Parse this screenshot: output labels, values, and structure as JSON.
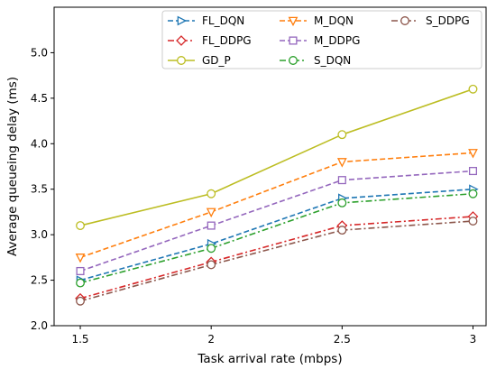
{
  "chart_data": {
    "type": "line",
    "title": "",
    "xlabel": "Task arrival rate (mbps)",
    "ylabel": "Average queueing delay (ms)",
    "x": [
      1.5,
      2,
      2.5,
      3
    ],
    "xtick_labels": [
      "1.5",
      "2",
      "2.5",
      "3"
    ],
    "ylim": [
      2.0,
      5.5
    ],
    "yticks": [
      2.0,
      2.5,
      3.0,
      3.5,
      4.0,
      4.5,
      5.0
    ],
    "ytick_labels": [
      "2.0",
      "2.5",
      "3.0",
      "3.5",
      "4.0",
      "4.5",
      "5.0"
    ],
    "grid": false,
    "legend_position": "top-right",
    "series": [
      {
        "name": "FL_DQN",
        "values": [
          2.5,
          2.9,
          3.4,
          3.5
        ],
        "color": "#1f77b4",
        "dash": "dashed",
        "marker": "triangle-right"
      },
      {
        "name": "FL_DDPG",
        "values": [
          2.3,
          2.7,
          3.1,
          3.2
        ],
        "color": "#d62728",
        "dash": "dashdot",
        "marker": "diamond"
      },
      {
        "name": "GD_P",
        "values": [
          3.1,
          3.45,
          4.1,
          4.6
        ],
        "color": "#bcbd22",
        "dash": "solid",
        "marker": "circle"
      },
      {
        "name": "M_DQN",
        "values": [
          2.75,
          3.25,
          3.8,
          3.9
        ],
        "color": "#ff7f0e",
        "dash": "dashed",
        "marker": "triangle-down"
      },
      {
        "name": "M_DDPG",
        "values": [
          2.6,
          3.1,
          3.6,
          3.7
        ],
        "color": "#9467bd",
        "dash": "dashed",
        "marker": "square"
      },
      {
        "name": "S_DQN",
        "values": [
          2.47,
          2.85,
          3.35,
          3.45
        ],
        "color": "#2ca02c",
        "dash": "dashdot",
        "marker": "circle"
      },
      {
        "name": "S_DDPG",
        "values": [
          2.27,
          2.67,
          3.05,
          3.15
        ],
        "color": "#8c564b",
        "dash": "dashdot",
        "marker": "circle"
      }
    ]
  }
}
